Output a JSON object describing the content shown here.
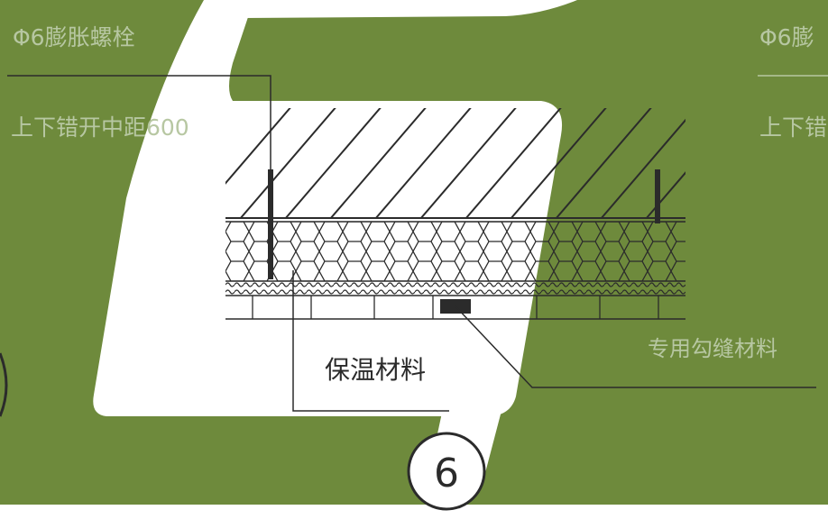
{
  "labels": {
    "bolt_left": "Φ6膨胀螺栓",
    "spacing_left": "上下错开中距600",
    "bolt_right": "Φ6膨",
    "spacing_right": "上下错",
    "insulation": "保温材料",
    "joint_material": "专用勾缝材料",
    "detail_number": "6"
  },
  "colors": {
    "background_green": "#6e8a3c",
    "panel_white": "#ffffff",
    "line_dark": "#2b2b2b",
    "label_faded": "#b7c7a2"
  }
}
